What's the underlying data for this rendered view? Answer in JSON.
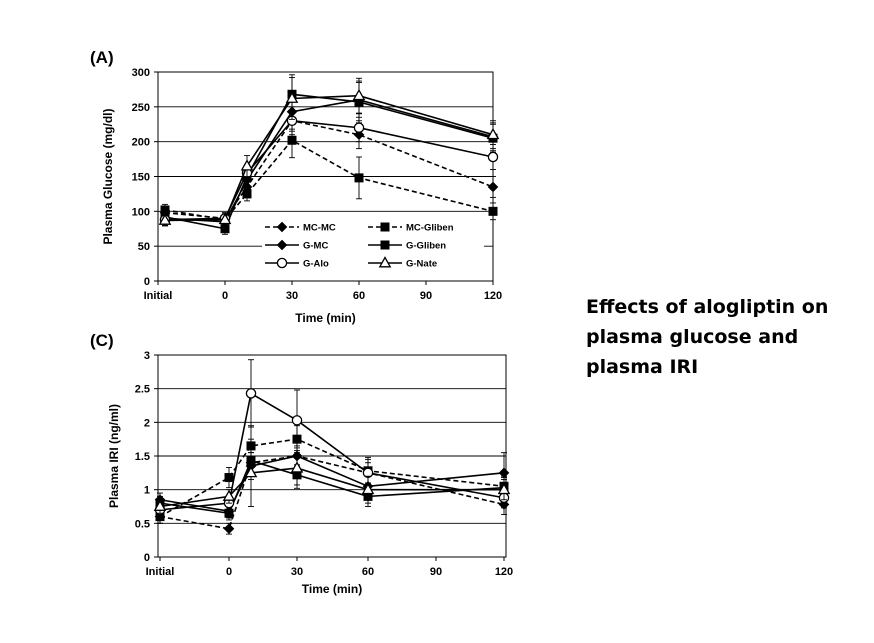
{
  "caption": {
    "lines": [
      "Effects of alogliptin on",
      "plasma glucose and",
      "plasma IRI"
    ]
  },
  "colors": {
    "line": "#000000",
    "grid": "#000000",
    "background": "#ffffff"
  },
  "chart_data": [
    {
      "panel": "(A)",
      "type": "line",
      "ylabel": "Plasma Glucose (mg/dl)",
      "xlabel": "Time (min)",
      "ylim": [
        0,
        300
      ],
      "yticks": [
        0,
        50,
        100,
        150,
        200,
        250,
        300
      ],
      "x_categories": [
        "Initial",
        "0",
        "10",
        "30",
        "60",
        "120"
      ],
      "xtick_labels": [
        "Initial",
        "0",
        "30",
        "60",
        "90",
        "120"
      ],
      "grid": true,
      "legend_position": "lower-center",
      "series": [
        {
          "name": "MC-MC",
          "marker": "diamond-filled",
          "dash": true,
          "values": [
            98,
            90,
            135,
            230,
            210,
            135
          ],
          "err": [
            8,
            8,
            10,
            15,
            20,
            15
          ]
        },
        {
          "name": "MC-Gliben",
          "marker": "square-filled",
          "dash": true,
          "values": [
            102,
            88,
            125,
            202,
            148,
            100
          ],
          "err": [
            8,
            8,
            10,
            25,
            30,
            12
          ]
        },
        {
          "name": "G-MC",
          "marker": "diamond-filled",
          "dash": false,
          "values": [
            90,
            85,
            145,
            243,
            260,
            207
          ],
          "err": [
            8,
            8,
            12,
            25,
            25,
            20
          ]
        },
        {
          "name": "G-Gliben",
          "marker": "square-filled",
          "dash": false,
          "values": [
            92,
            75,
            150,
            268,
            257,
            205
          ],
          "err": [
            8,
            8,
            12,
            28,
            30,
            20
          ]
        },
        {
          "name": "G-Alo",
          "marker": "circle-open",
          "dash": false,
          "values": [
            88,
            90,
            155,
            230,
            220,
            178
          ],
          "err": [
            8,
            8,
            12,
            20,
            20,
            18
          ]
        },
        {
          "name": "G-Nate",
          "marker": "triangle-open",
          "dash": false,
          "values": [
            87,
            88,
            165,
            262,
            266,
            210
          ],
          "err": [
            8,
            8,
            15,
            30,
            25,
            20
          ]
        }
      ]
    },
    {
      "panel": "(C)",
      "type": "line",
      "ylabel": "Plasma IRI (ng/ml)",
      "xlabel": "Time (min)",
      "ylim": [
        0,
        3
      ],
      "yticks": [
        0,
        0.5,
        1,
        1.5,
        2,
        2.5,
        3
      ],
      "ytick_labels": [
        "0",
        "0.5",
        "1",
        "1.5",
        "2",
        "2.5",
        "3"
      ],
      "x_categories": [
        "Initial",
        "0",
        "10",
        "30",
        "60",
        "120"
      ],
      "xtick_labels": [
        "Initial",
        "0",
        "30",
        "60",
        "90",
        "120"
      ],
      "grid": true,
      "series": [
        {
          "name": "MC-MC",
          "marker": "diamond-filled",
          "dash": true,
          "values": [
            0.6,
            0.42,
            1.4,
            1.5,
            1.25,
            0.78
          ],
          "err": [
            0.1,
            0.08,
            0.15,
            0.15,
            0.15,
            0.15
          ]
        },
        {
          "name": "MC-Gliben",
          "marker": "square-filled",
          "dash": true,
          "values": [
            0.6,
            1.18,
            1.65,
            1.75,
            1.28,
            1.05
          ],
          "err": [
            0.1,
            0.15,
            0.3,
            0.2,
            0.2,
            0.15
          ]
        },
        {
          "name": "G-MC",
          "marker": "diamond-filled",
          "dash": false,
          "values": [
            0.85,
            0.68,
            1.35,
            1.5,
            1.05,
            1.25
          ],
          "err": [
            0.1,
            0.1,
            0.2,
            0.2,
            0.15,
            0.3
          ]
        },
        {
          "name": "G-Gliben",
          "marker": "square-filled",
          "dash": false,
          "values": [
            0.8,
            0.65,
            1.43,
            1.22,
            0.9,
            1.03
          ],
          "err": [
            0.1,
            0.1,
            0.2,
            0.15,
            0.15,
            0.15
          ]
        },
        {
          "name": "G-Alo",
          "marker": "circle-open",
          "dash": false,
          "values": [
            0.7,
            0.8,
            2.43,
            2.03,
            1.25,
            0.88
          ],
          "err": [
            0.1,
            0.1,
            0.5,
            0.45,
            0.2,
            0.15
          ]
        },
        {
          "name": "G-Nate",
          "marker": "triangle-open",
          "dash": false,
          "values": [
            0.75,
            0.9,
            1.25,
            1.32,
            1.0,
            1.0
          ],
          "err": [
            0.1,
            0.1,
            0.5,
            0.3,
            0.2,
            0.15
          ]
        }
      ]
    }
  ]
}
